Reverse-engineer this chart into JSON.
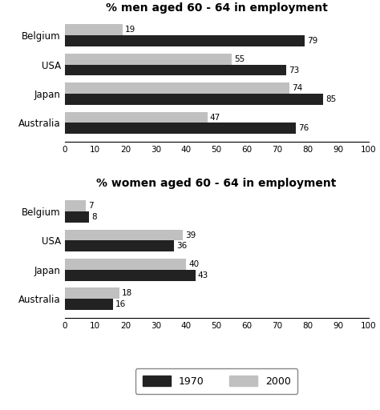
{
  "men": {
    "title": "% men aged 60 - 64 in employment",
    "countries": [
      "Belgium",
      "USA",
      "Japan",
      "Australia"
    ],
    "values_1970": [
      79,
      73,
      85,
      76
    ],
    "values_2000": [
      19,
      55,
      74,
      47
    ]
  },
  "women": {
    "title": "% women aged 60 - 64 in employment",
    "countries": [
      "Belgium",
      "USA",
      "Japan",
      "Australia"
    ],
    "values_1970": [
      8,
      36,
      43,
      16
    ],
    "values_2000": [
      7,
      39,
      40,
      18
    ]
  },
  "color_1970": "#222222",
  "color_2000": "#c0c0c0",
  "bar_height": 0.38,
  "xlim": [
    0,
    100
  ],
  "xticks": [
    0,
    10,
    20,
    30,
    40,
    50,
    60,
    70,
    80,
    90,
    100
  ],
  "legend_labels": [
    "1970",
    "2000"
  ],
  "label_fontsize": 7.5,
  "title_fontsize": 10,
  "tick_fontsize": 7.5,
  "country_fontsize": 8.5,
  "background_color": "#ffffff"
}
